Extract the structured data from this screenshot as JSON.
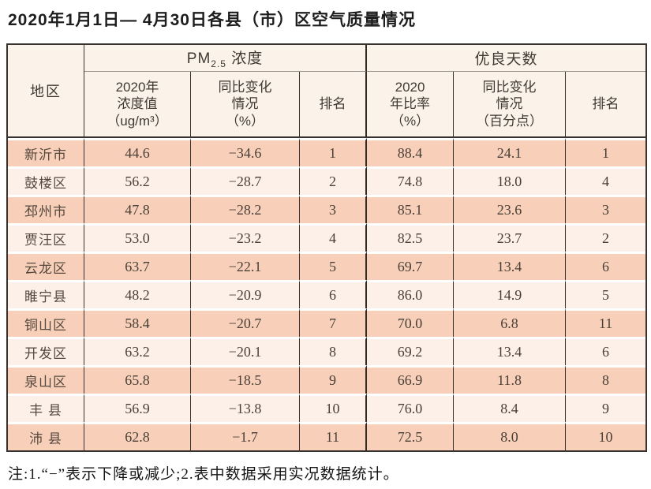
{
  "title": "2020年1月1日— 4月30日各县（市）区空气质量情况",
  "note": "注:1.“−”表示下降或减少;2.表中数据采用实况数据统计。",
  "colors": {
    "row_odd": "#f8cfb8",
    "row_even": "#fdf0e8",
    "header_bg": "#fbf3ea",
    "border_dark": "#37322d",
    "header_underline_gray": "#989189",
    "text": "#493f37"
  },
  "table": {
    "region_header": "地区",
    "pm_group": {
      "prefix": "PM",
      "sub": "2.5",
      "suffix": " 浓度"
    },
    "good_group": "优良天数",
    "sub_headers": [
      "2020年\n浓度值\n（ug/m³）",
      "同比变化\n情况\n（%）",
      "排名",
      "2020\n年比率\n（%）",
      "同比变化\n情况\n（百分点）",
      "排名"
    ],
    "rows": [
      {
        "region": "新沂市",
        "values": [
          "44.6",
          "−34.6",
          "1",
          "88.4",
          "24.1",
          "1"
        ]
      },
      {
        "region": "鼓楼区",
        "values": [
          "56.2",
          "−28.7",
          "2",
          "74.8",
          "18.0",
          "4"
        ]
      },
      {
        "region": "邳州市",
        "values": [
          "47.8",
          "−28.2",
          "3",
          "85.1",
          "23.6",
          "3"
        ]
      },
      {
        "region": "贾汪区",
        "values": [
          "53.0",
          "−23.2",
          "4",
          "82.5",
          "23.7",
          "2"
        ]
      },
      {
        "region": "云龙区",
        "values": [
          "63.7",
          "−22.1",
          "5",
          "69.7",
          "13.4",
          "6"
        ]
      },
      {
        "region": "睢宁县",
        "values": [
          "48.2",
          "−20.9",
          "6",
          "86.0",
          "14.9",
          "5"
        ]
      },
      {
        "region": "铜山区",
        "values": [
          "58.4",
          "−20.7",
          "7",
          "70.0",
          "6.8",
          "11"
        ]
      },
      {
        "region": "开发区",
        "values": [
          "63.2",
          "−20.1",
          "8",
          "69.2",
          "13.4",
          "6"
        ]
      },
      {
        "region": "泉山区",
        "values": [
          "65.8",
          "−18.5",
          "9",
          "66.9",
          "11.8",
          "8"
        ]
      },
      {
        "region": "丰 县",
        "values": [
          "56.9",
          "−13.8",
          "10",
          "76.0",
          "8.4",
          "9"
        ]
      },
      {
        "region": "沛 县",
        "values": [
          "62.8",
          "−1.7",
          "11",
          "72.5",
          "8.0",
          "10"
        ]
      }
    ]
  },
  "chart_data": {
    "type": "table",
    "title": "2020年1月1日—4月30日各县（市）区空气质量情况",
    "column_groups": [
      {
        "label": "地区",
        "span": 1
      },
      {
        "label": "PM2.5浓度",
        "span": 3
      },
      {
        "label": "优良天数",
        "span": 3
      }
    ],
    "columns": [
      "地区",
      "PM2.5 2020年浓度值（ug/m³）",
      "PM2.5 同比变化情况（%）",
      "PM2.5 排名",
      "优良天数 2020年比率（%）",
      "优良天数 同比变化情况（百分点）",
      "优良天数 排名"
    ],
    "rows": [
      [
        "新沂市",
        44.6,
        -34.6,
        1,
        88.4,
        24.1,
        1
      ],
      [
        "鼓楼区",
        56.2,
        -28.7,
        2,
        74.8,
        18.0,
        4
      ],
      [
        "邳州市",
        47.8,
        -28.2,
        3,
        85.1,
        23.6,
        3
      ],
      [
        "贾汪区",
        53.0,
        -23.2,
        4,
        82.5,
        23.7,
        2
      ],
      [
        "云龙区",
        63.7,
        -22.1,
        5,
        69.7,
        13.4,
        6
      ],
      [
        "睢宁县",
        48.2,
        -20.9,
        6,
        86.0,
        14.9,
        5
      ],
      [
        "铜山区",
        58.4,
        -20.7,
        7,
        70.0,
        6.8,
        11
      ],
      [
        "开发区",
        63.2,
        -20.1,
        8,
        69.2,
        13.4,
        6
      ],
      [
        "泉山区",
        65.8,
        -18.5,
        9,
        66.9,
        11.8,
        8
      ],
      [
        "丰县",
        56.9,
        -13.8,
        10,
        76.0,
        8.4,
        9
      ],
      [
        "沛县",
        62.8,
        -1.7,
        11,
        72.5,
        8.0,
        10
      ]
    ],
    "footnote": "注:1.“−”表示下降或减少;2.表中数据采用实况数据统计。"
  }
}
